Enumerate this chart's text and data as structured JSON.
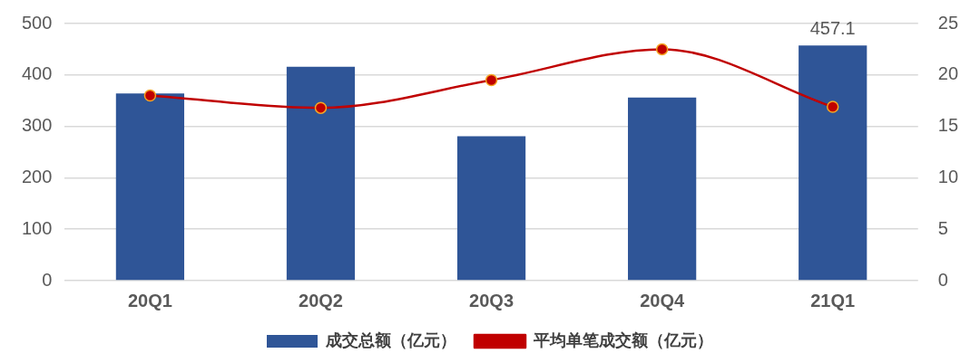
{
  "chart_data": {
    "type": "bar",
    "categories": [
      "20Q1",
      "20Q2",
      "20Q3",
      "20Q4",
      "21Q1"
    ],
    "series": [
      {
        "name": "成交总额（亿元）",
        "color": "#2f5597",
        "values": [
          364,
          416,
          281,
          356,
          457.1
        ],
        "value_labels": [
          null,
          null,
          null,
          null,
          "457.1"
        ]
      },
      {
        "name": "平均单笔成交额（亿元）",
        "type": "line",
        "axis": "y2",
        "color": "#c00000",
        "values": [
          18.0,
          16.8,
          19.5,
          22.5,
          16.9
        ]
      }
    ],
    "ylim": [
      0,
      500
    ],
    "yticks": [
      0,
      100,
      200,
      300,
      400,
      500
    ],
    "y2lim": [
      0,
      25
    ],
    "y2ticks": [
      0,
      5,
      10,
      15,
      20,
      25
    ],
    "grid": "y",
    "legend": "bottom",
    "marker": "circle",
    "line_style": "solid"
  }
}
